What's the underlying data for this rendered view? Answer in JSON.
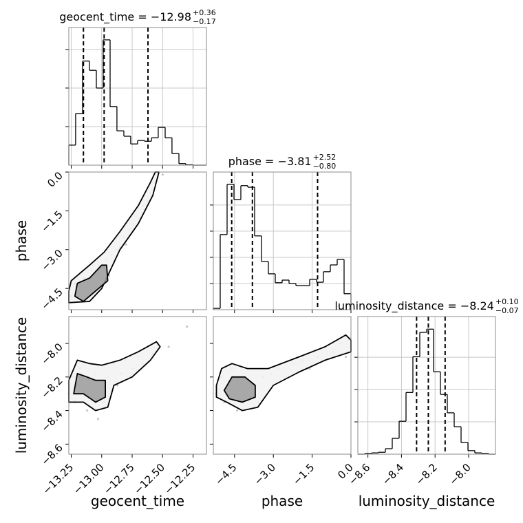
{
  "chart_data": [
    {
      "type": "histogram",
      "title": {
        "main": "geocent_time = −12.98",
        "upper": "+0.36",
        "lower": "−0.17"
      },
      "bins": [
        -13.27,
        -13.214,
        -13.157,
        -13.101,
        -13.044,
        -12.988,
        -12.931,
        -12.875,
        -12.818,
        -12.762,
        -12.705,
        -12.649,
        -12.592,
        -12.536,
        -12.479,
        -12.423,
        -12.366,
        -12.31,
        -12.253,
        -12.197,
        -12.14
      ],
      "values": [
        0.52,
        1.34,
        2.7,
        2.46,
        2.0,
        3.25,
        1.52,
        0.89,
        0.75,
        0.55,
        0.64,
        0.62,
        0.71,
        0.98,
        0.71,
        0.3,
        0.04,
        0.01,
        0,
        0
      ],
      "quantiles": [
        -13.15,
        -12.98,
        -12.62
      ],
      "xlim": [
        -13.27,
        -12.14
      ],
      "ylim": [
        0,
        3.57
      ],
      "xticks": [
        -13.25,
        -13.0,
        -12.75,
        -12.5,
        -12.25
      ],
      "yticks": [
        1,
        2,
        3
      ],
      "grid": true,
      "color": "#000000"
    },
    {
      "type": "histogram",
      "title": {
        "main": "phase = −3.81",
        "upper": "+2.52",
        "lower": "−0.80"
      },
      "bins": [
        -5.32,
        -5.054,
        -4.788,
        -4.522,
        -4.256,
        -3.99,
        -3.724,
        -3.458,
        -3.192,
        -2.926,
        -2.66,
        -2.394,
        -2.128,
        -1.862,
        -1.596,
        -1.33,
        -1.064,
        -0.798,
        -0.532,
        -0.266,
        0.0
      ],
      "values": [
        0.05,
        2.87,
        4.79,
        4.21,
        4.74,
        4.68,
        2.82,
        1.84,
        1.37,
        1.03,
        1.13,
        1.0,
        0.92,
        0.92,
        1.16,
        1.05,
        1.45,
        1.71,
        1.92,
        0.61
      ],
      "quantiles": [
        -4.61,
        -3.81,
        -1.29
      ],
      "xlim": [
        -5.32,
        0.0
      ],
      "ylim": [
        0,
        5.26
      ],
      "xticks": [
        -4.5,
        -3.0,
        -1.5,
        0.0
      ],
      "yticks": [
        1,
        2,
        3,
        4
      ],
      "grid": true,
      "color": "#000000"
    },
    {
      "type": "histogram",
      "title": {
        "main": "luminosity_distance = −8.24",
        "upper": "+0.10",
        "lower": "−0.07"
      },
      "xlabel": "luminosity_distance",
      "bins": [
        -8.66,
        -8.619,
        -8.578,
        -8.537,
        -8.496,
        -8.455,
        -8.414,
        -8.373,
        -8.332,
        -8.291,
        -8.25,
        -8.209,
        -8.168,
        -8.127,
        -8.086,
        -8.045,
        -8.004,
        -7.963,
        -7.922,
        -7.881,
        -7.84
      ],
      "values": [
        0,
        0.02,
        0.04,
        0.06,
        0.17,
        0.49,
        1.02,
        1.91,
        3.02,
        3.77,
        3.87,
        2.55,
        1.85,
        1.28,
        0.85,
        0.36,
        0.11,
        0.04,
        0.02,
        0
      ],
      "quantiles": [
        -8.31,
        -8.24,
        -8.14
      ],
      "xlim": [
        -8.66,
        -7.84
      ],
      "ylim": [
        0,
        4.26
      ],
      "xticks": [
        {
          "value": -8.6,
          "label": "−8.6"
        },
        {
          "value": -8.4,
          "label": "−8.4"
        },
        {
          "value": -8.2,
          "label": "−8.2"
        },
        {
          "value": -8.0,
          "label": "−8.0"
        }
      ],
      "yticks": [
        1,
        2,
        3
      ],
      "grid": true,
      "color": "#000000"
    },
    {
      "type": "contour",
      "ylabel": "phase",
      "x": [
        -13.25,
        -13.22,
        -13.2,
        -13.17,
        -13.15,
        -13.12,
        -13.1,
        -13.08,
        -13.05,
        -13.02,
        -13.0,
        -12.98,
        -12.96,
        -12.94,
        -12.92,
        -12.9,
        -12.88,
        -12.85,
        -12.82,
        -12.8,
        -12.77,
        -12.74,
        -12.72,
        -12.69,
        -12.66,
        -12.63,
        -12.6,
        -12.57,
        -12.54,
        -12.5
      ],
      "y": [
        -4.8,
        -4.3,
        -4.9,
        -4.4,
        -4.1,
        -4.7,
        -4.2,
        -3.8,
        -4.4,
        -3.6,
        -4.1,
        -3.7,
        -3.4,
        -4.0,
        -3.2,
        -3.5,
        -3.0,
        -2.9,
        -2.5,
        -2.8,
        -2.2,
        -2.0,
        -1.7,
        -1.8,
        -1.3,
        -1.1,
        -0.8,
        -0.4,
        -0.2,
        -0.1
      ],
      "point_color": "#a0a0a0",
      "contours": [
        {
          "color": "#f2f2f2",
          "x": [
            -13.27,
            -13.25,
            -13.1,
            -12.98,
            -12.85,
            -12.7,
            -12.6,
            -12.56,
            -12.53,
            -12.58,
            -12.7,
            -12.85,
            -12.93,
            -13.0,
            -13.1,
            -13.27
          ],
          "y": [
            -4.6,
            -4.2,
            -3.6,
            -3.1,
            -2.3,
            -1.3,
            -0.4,
            0.0,
            0.0,
            -0.9,
            -2.0,
            -3.0,
            -3.8,
            -4.5,
            -5.0,
            -5.05
          ]
        },
        {
          "color": "#9a9a9a",
          "x": [
            -13.22,
            -13.2,
            -13.1,
            -13.0,
            -12.96,
            -12.95,
            -13.05,
            -13.15
          ],
          "y": [
            -4.8,
            -4.3,
            -4.1,
            -3.6,
            -3.6,
            -4.2,
            -4.6,
            -5.0
          ]
        }
      ],
      "xlim": [
        -13.27,
        -12.14
      ],
      "ylim": [
        -5.32,
        0.0
      ],
      "xticks": [
        -13.25,
        -13.0,
        -12.75,
        -12.5,
        -12.25
      ],
      "yticks": [
        {
          "value": -4.5,
          "label": "−4.5"
        },
        {
          "value": -3.0,
          "label": "−3.0"
        },
        {
          "value": -1.5,
          "label": "−1.5"
        },
        {
          "value": 0.0,
          "label": "0.0"
        }
      ]
    },
    {
      "type": "contour",
      "xlabel": "geocent_time",
      "ylabel": "luminosity_distance",
      "x": [
        -13.27,
        -13.24,
        -13.22,
        -13.2,
        -13.18,
        -13.15,
        -13.12,
        -13.1,
        -13.08,
        -13.05,
        -13.03,
        -13.0,
        -12.98,
        -12.95,
        -12.92,
        -12.9,
        -12.87,
        -12.84,
        -12.8,
        -12.77,
        -12.74,
        -12.7,
        -12.66,
        -12.62,
        -12.58,
        -12.54,
        -12.45,
        -12.3
      ],
      "y": [
        -8.3,
        -8.2,
        -8.35,
        -8.25,
        -8.15,
        -8.3,
        -8.4,
        -8.22,
        -8.32,
        -8.18,
        -8.45,
        -8.28,
        -8.35,
        -8.2,
        -8.3,
        -8.12,
        -8.25,
        -8.18,
        -8.1,
        -8.2,
        -8.15,
        -8.08,
        -8.12,
        -8.02,
        -8.06,
        -8.0,
        -8.02,
        -7.9
      ],
      "point_color": "#a0a0a0",
      "contours": [
        {
          "color": "#f2f2f2",
          "x": [
            -13.27,
            -13.27,
            -13.2,
            -13.1,
            -13.0,
            -12.85,
            -12.7,
            -12.55,
            -12.52,
            -12.6,
            -12.75,
            -12.9,
            -12.95,
            -13.05,
            -13.15
          ],
          "y": [
            -8.35,
            -8.22,
            -8.1,
            -8.12,
            -8.13,
            -8.1,
            -8.05,
            -7.99,
            -8.02,
            -8.1,
            -8.2,
            -8.25,
            -8.38,
            -8.4,
            -8.35
          ]
        },
        {
          "color": "#9a9a9a",
          "x": [
            -13.23,
            -13.2,
            -13.12,
            -13.05,
            -12.97,
            -12.97,
            -13.05,
            -13.15
          ],
          "y": [
            -8.3,
            -8.18,
            -8.2,
            -8.22,
            -8.22,
            -8.32,
            -8.35,
            -8.3
          ]
        }
      ],
      "xlim": [
        -13.27,
        -12.14
      ],
      "ylim": [
        -8.66,
        -7.84
      ],
      "xticks": [
        {
          "value": -13.25,
          "label": "−13.25"
        },
        {
          "value": -13.0,
          "label": "−13.00"
        },
        {
          "value": -12.75,
          "label": "−12.75"
        },
        {
          "value": -12.5,
          "label": "−12.50"
        },
        {
          "value": -12.25,
          "label": "−12.25"
        }
      ],
      "yticks": [
        {
          "value": -8.6,
          "label": "−8.6"
        },
        {
          "value": -8.4,
          "label": "−8.4"
        },
        {
          "value": -8.2,
          "label": "−8.2"
        },
        {
          "value": -8.0,
          "label": "−8.0"
        }
      ]
    },
    {
      "type": "contour",
      "xlabel": "phase",
      "x": [
        -5.2,
        -5.0,
        -4.9,
        -4.7,
        -4.6,
        -4.5,
        -4.4,
        -4.2,
        -4.0,
        -3.8,
        -3.6,
        -3.4,
        -3.1,
        -2.8,
        -2.5,
        -2.2,
        -1.9,
        -1.6,
        -1.3,
        -1.0,
        -0.7,
        -0.4,
        -0.2,
        -0.1
      ],
      "y": [
        -8.3,
        -8.2,
        -8.35,
        -8.25,
        -8.15,
        -8.3,
        -8.4,
        -8.22,
        -8.3,
        -8.25,
        -8.35,
        -8.2,
        -8.18,
        -8.15,
        -8.2,
        -8.12,
        -8.1,
        -8.15,
        -8.08,
        -8.1,
        -8.05,
        -8.0,
        -8.08,
        -7.98
      ],
      "point_color": "#a0a0a0",
      "contours": [
        {
          "color": "#f2f2f2",
          "x": [
            -5.2,
            -5.0,
            -4.6,
            -4.0,
            -3.2,
            -2.0,
            -1.0,
            -0.2,
            0.0,
            0.0,
            -1.0,
            -2.0,
            -3.0,
            -3.6,
            -4.2,
            -4.8,
            -5.2
          ],
          "y": [
            -8.25,
            -8.15,
            -8.12,
            -8.15,
            -8.15,
            -8.08,
            -8.02,
            -7.95,
            -7.98,
            -8.05,
            -8.1,
            -8.17,
            -8.25,
            -8.38,
            -8.4,
            -8.35,
            -8.32
          ]
        },
        {
          "color": "#9a9a9a",
          "x": [
            -4.9,
            -4.6,
            -4.1,
            -3.7,
            -3.7,
            -4.2,
            -4.7
          ],
          "y": [
            -8.28,
            -8.2,
            -8.2,
            -8.25,
            -8.32,
            -8.35,
            -8.33
          ]
        }
      ],
      "xlim": [
        -5.32,
        0.0
      ],
      "ylim": [
        -8.66,
        -7.84
      ],
      "xticks": [
        {
          "value": -4.5,
          "label": "−4.5"
        },
        {
          "value": -3.0,
          "label": "−3.0"
        },
        {
          "value": -1.5,
          "label": "−1.5"
        },
        {
          "value": 0.0,
          "label": "0.0"
        }
      ],
      "yticks": [
        -8.6,
        -8.4,
        -8.2,
        -8.0
      ]
    }
  ]
}
